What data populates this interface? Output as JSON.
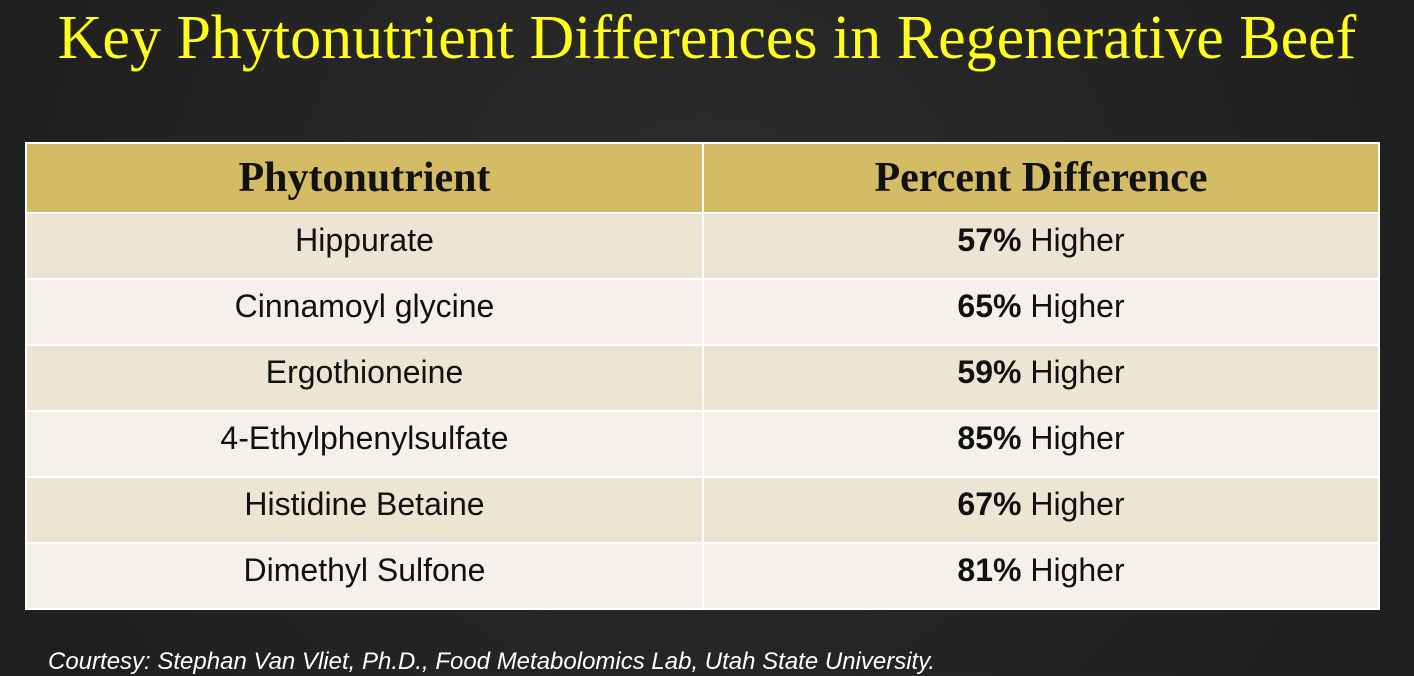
{
  "title": "Key Phytonutrient Differences in Regenerative Beef",
  "table": {
    "header": [
      "Phytonutrient",
      "Percent Difference"
    ],
    "rows": [
      {
        "name": "Hippurate",
        "percent": "57%",
        "text": "Higher"
      },
      {
        "name": "Cinnamoyl glycine",
        "percent": "65%",
        "text": "Higher"
      },
      {
        "name": "Ergothioneine",
        "percent": "59%",
        "text": "Higher"
      },
      {
        "name": "4-Ethylphenylsulfate",
        "percent": "85%",
        "text": "Higher"
      },
      {
        "name": "Histidine Betaine",
        "percent": "67%",
        "text": "Higher"
      },
      {
        "name": "Dimethyl Sulfone",
        "percent": "81%",
        "text": "Higher"
      }
    ]
  },
  "footer": "Courtesy: Stephan Van Vliet, Ph.D., Food Metabolomics Lab, Utah State University."
}
